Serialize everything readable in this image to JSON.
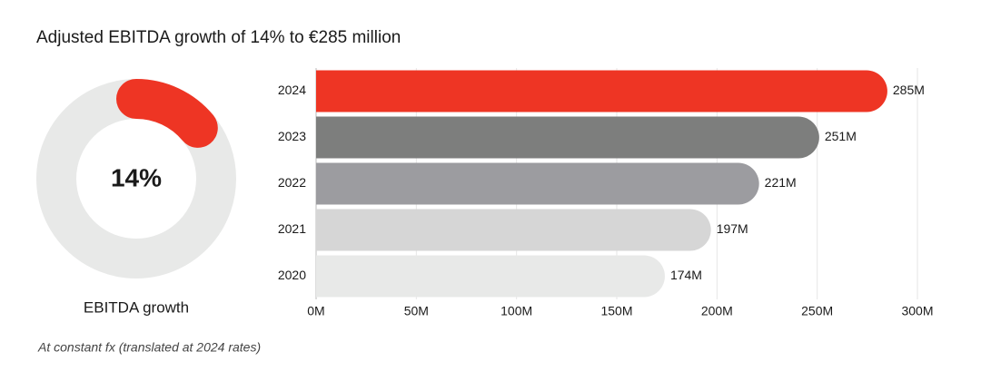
{
  "title": "Adjusted EBITDA growth of 14% to €285 million",
  "note": "At constant fx (translated at 2024 rates)",
  "chart_data": [
    {
      "type": "donut",
      "value": 14,
      "value_label": "14%",
      "label": "EBITDA growth",
      "color": "#ee3524",
      "track_color": "#e8e9e8"
    },
    {
      "type": "bar",
      "orientation": "horizontal",
      "categories": [
        "2024",
        "2023",
        "2022",
        "2021",
        "2020"
      ],
      "values": [
        285,
        251,
        221,
        197,
        174
      ],
      "value_labels": [
        "285M",
        "251M",
        "221M",
        "197M",
        "174M"
      ],
      "colors": [
        "#ee3524",
        "#7d7e7d",
        "#9c9ca0",
        "#d6d6d6",
        "#e8e9e8"
      ],
      "xlim": [
        0,
        300
      ],
      "xticks": [
        {
          "value": 0,
          "label": "0M"
        },
        {
          "value": 50,
          "label": "50M"
        },
        {
          "value": 100,
          "label": "100M"
        },
        {
          "value": 150,
          "label": "150M"
        },
        {
          "value": 200,
          "label": "200M"
        },
        {
          "value": 250,
          "label": "250M"
        },
        {
          "value": 300,
          "label": "300M"
        }
      ],
      "grid": true
    }
  ]
}
